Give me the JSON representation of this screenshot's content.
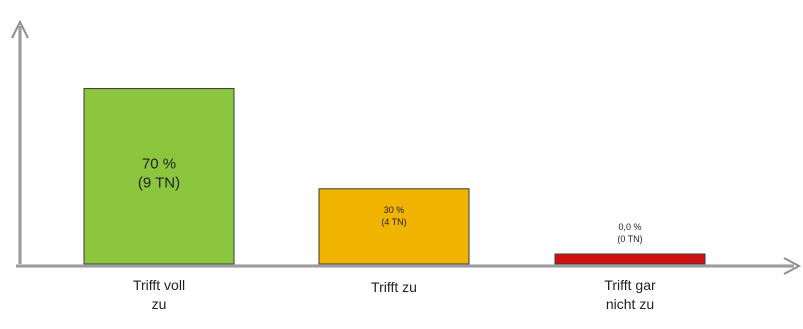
{
  "chart_data": {
    "type": "bar",
    "categories": [
      [
        "Trifft voll",
        "zu"
      ],
      [
        "Trifft zu"
      ],
      [
        "Trifft gar",
        "nicht zu"
      ]
    ],
    "values": [
      70,
      30,
      0
    ],
    "value_labels": [
      "70 %",
      "30 %",
      "0,0 %"
    ],
    "count_labels": [
      "(9 TN)",
      "(4 TN)",
      "(0 TN)"
    ],
    "colors": [
      "#8cc63f",
      "#f0b400",
      "#d01010"
    ],
    "ylim": [
      0,
      75
    ],
    "title": "",
    "xlabel": "",
    "ylabel": "",
    "grid": false
  }
}
